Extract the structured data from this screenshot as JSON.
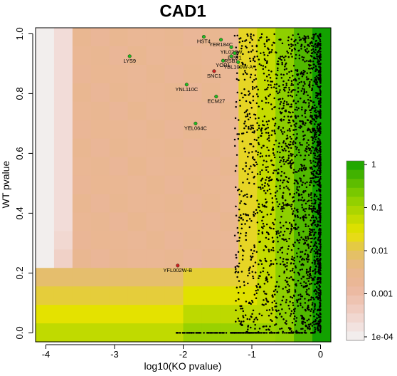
{
  "chart_data": {
    "type": "heatmap",
    "title": "CAD1",
    "xlabel": "log10(KO pvalue)",
    "ylabel": "WT pvalue",
    "xlim": [
      -4.15,
      0.15
    ],
    "ylim": [
      -0.03,
      1.02
    ],
    "xticks": [
      "-4",
      "-3",
      "-2",
      "-1",
      "0"
    ],
    "xtick_values": [
      -4,
      -3,
      -2,
      -1,
      0
    ],
    "yticks": [
      "0.0",
      "0.2",
      "0.4",
      "0.6",
      "0.8",
      "1.0"
    ],
    "ytick_values": [
      0,
      0.2,
      0.4,
      0.6,
      0.8,
      1.0
    ],
    "heatmap_grid": {
      "x_range": [
        -4.15,
        0.15
      ],
      "y_range": [
        -0.03,
        1.02
      ],
      "columns": 16,
      "rows": 17,
      "scale": "log10 p-value",
      "scale_range": [
        -4,
        0
      ]
    },
    "legend": {
      "position": "right",
      "ticks": [
        "1",
        "0.1",
        "0.01",
        "0.001",
        "1e-04"
      ],
      "tick_values": [
        0,
        -1,
        -2,
        -3,
        -4
      ],
      "colors": [
        "#f2f2f2",
        "#f2dcd8",
        "#efc7b8",
        "#ebb69a",
        "#e8b88a",
        "#e3c25a",
        "#e8e300",
        "#b8d800",
        "#86cd00",
        "#50b800",
        "#12a100"
      ]
    },
    "points": {
      "color": "#000000",
      "count_shown": "dense cloud concentrated at log10(KO pvalue) > -1.2"
    },
    "labeled_genes": [
      {
        "name": "HST4",
        "x": -1.7,
        "y": 0.99,
        "color": "#22bb22"
      },
      {
        "name": "YER184C",
        "x": -1.45,
        "y": 0.98,
        "color": "#22bb22"
      },
      {
        "name": "YIL028W",
        "x": -1.3,
        "y": 0.955,
        "color": "#22bb22"
      },
      {
        "name": "PPR1",
        "x": -1.25,
        "y": 0.935,
        "color": "#22bb22"
      },
      {
        "name": "RSB1",
        "x": -1.3,
        "y": 0.925,
        "color": "#22bb22"
      },
      {
        "name": "YOR1",
        "x": -1.42,
        "y": 0.91,
        "color": "#22bb22"
      },
      {
        "name": "YBL100W-A",
        "x": -1.2,
        "y": 0.905,
        "color": "#22bb22"
      },
      {
        "name": "SNC1",
        "x": -1.55,
        "y": 0.875,
        "color": "#cc2222"
      },
      {
        "name": "LYS9",
        "x": -2.78,
        "y": 0.925,
        "color": "#22bb22"
      },
      {
        "name": "YNL110C",
        "x": -1.95,
        "y": 0.83,
        "color": "#22bb22"
      },
      {
        "name": "ECM27",
        "x": -1.52,
        "y": 0.79,
        "color": "#22bb22"
      },
      {
        "name": "YEL064C",
        "x": -1.82,
        "y": 0.7,
        "color": "#22bb22"
      },
      {
        "name": "YFL002W-B",
        "x": -2.08,
        "y": 0.225,
        "color": "#cc2222"
      }
    ]
  }
}
